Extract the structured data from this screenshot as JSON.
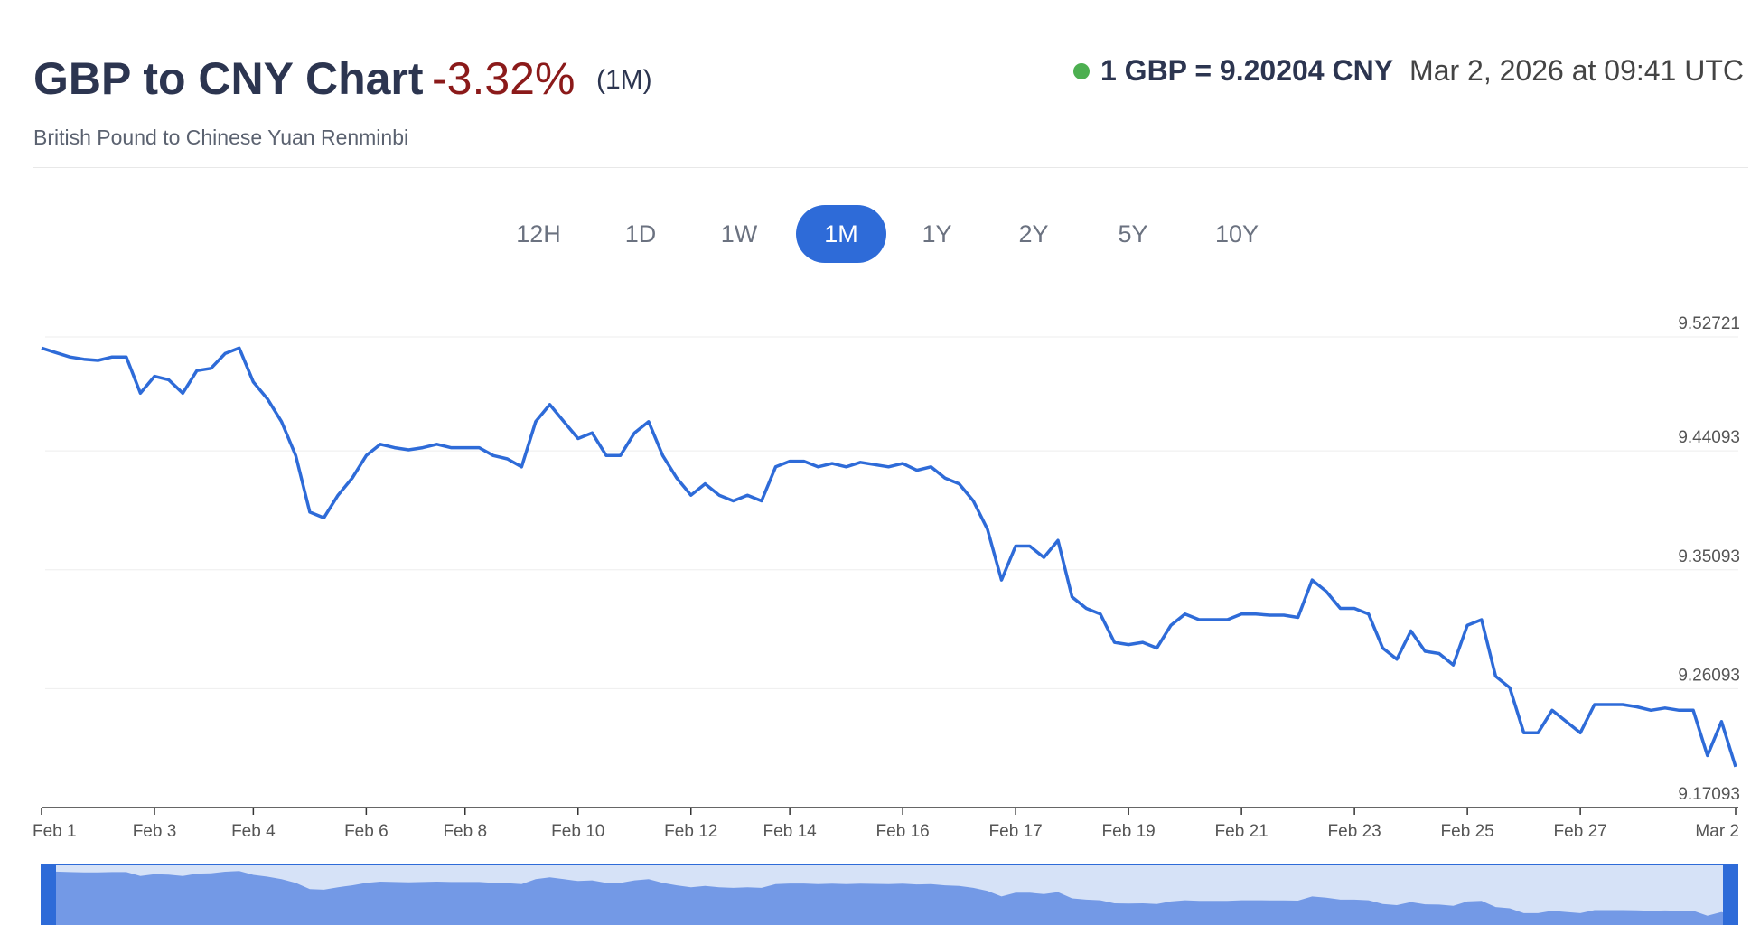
{
  "header": {
    "title": "GBP to CNY Chart",
    "change": "-3.32%",
    "period": "(1M)",
    "subtitle": "British Pound to Chinese Yuan Renminbi",
    "rate": "1 GBP = 9.20204 CNY",
    "timestamp": "Mar 2, 2026 at 09:41 UTC"
  },
  "ranges": {
    "options": [
      "12H",
      "1D",
      "1W",
      "1M",
      "1Y",
      "2Y",
      "5Y",
      "10Y"
    ],
    "selected_index": 3
  },
  "chart_data": {
    "type": "line",
    "color": "#2e6bd8",
    "categories": [
      "Feb 1",
      null,
      null,
      null,
      null,
      null,
      null,
      null,
      "Feb 3",
      null,
      null,
      null,
      null,
      null,
      null,
      "Feb 4",
      null,
      null,
      null,
      null,
      null,
      null,
      null,
      "Feb 6",
      null,
      null,
      null,
      null,
      null,
      null,
      "Feb 8",
      null,
      null,
      null,
      null,
      null,
      null,
      null,
      "Feb 10",
      null,
      null,
      null,
      null,
      null,
      null,
      null,
      "Feb 12",
      null,
      null,
      null,
      null,
      null,
      null,
      "Feb 14",
      null,
      null,
      null,
      null,
      null,
      null,
      null,
      "Feb 16",
      null,
      null,
      null,
      null,
      null,
      null,
      null,
      "Feb 17",
      null,
      null,
      null,
      null,
      null,
      null,
      null,
      "Feb 19",
      null,
      null,
      null,
      null,
      null,
      null,
      null,
      "Feb 21",
      null,
      null,
      null,
      null,
      null,
      null,
      null,
      "Feb 23",
      null,
      null,
      null,
      null,
      null,
      null,
      null,
      "Feb 25",
      null,
      null,
      null,
      null,
      null,
      null,
      null,
      "Feb 27",
      null,
      null,
      null,
      null,
      null,
      null,
      null,
      null,
      null,
      null,
      "Mar 2"
    ],
    "values": [
      9.5188,
      9.5154,
      9.512,
      9.5103,
      9.5094,
      9.512,
      9.512,
      9.4846,
      9.4974,
      9.4948,
      9.4846,
      9.5017,
      9.5034,
      9.5146,
      9.5188,
      9.4931,
      9.4803,
      9.4631,
      9.4374,
      9.3946,
      9.3903,
      9.4074,
      9.4203,
      9.4374,
      9.446,
      9.4434,
      9.4417,
      9.4434,
      9.446,
      9.4434,
      9.4434,
      9.4434,
      9.4374,
      9.4349,
      9.4289,
      9.4631,
      9.476,
      9.4631,
      9.4503,
      9.4546,
      9.4374,
      9.4374,
      9.4546,
      9.4631,
      9.4374,
      9.4203,
      9.4074,
      9.416,
      9.4074,
      9.4031,
      9.4074,
      9.4031,
      9.4289,
      9.4331,
      9.4331,
      9.4289,
      9.4314,
      9.4289,
      9.4323,
      9.4306,
      9.4289,
      9.4314,
      9.4263,
      9.4289,
      9.4203,
      9.416,
      9.4031,
      9.3817,
      9.3432,
      9.3689,
      9.3689,
      9.3603,
      9.3732,
      9.3303,
      9.3217,
      9.3174,
      9.296,
      9.2943,
      9.296,
      9.2917,
      9.3089,
      9.3174,
      9.3132,
      9.3132,
      9.3132,
      9.3174,
      9.3174,
      9.3166,
      9.3166,
      9.3149,
      9.3432,
      9.3346,
      9.3217,
      9.3217,
      9.3174,
      9.2917,
      9.2832,
      9.3046,
      9.2892,
      9.2875,
      9.2789,
      9.3089,
      9.3132,
      9.2703,
      9.2617,
      9.2275,
      9.2275,
      9.2446,
      9.236,
      9.2275,
      9.2489,
      9.2489,
      9.2489,
      9.2472,
      9.2446,
      9.2463,
      9.2446,
      9.2446,
      9.2103,
      9.236,
      9.2018
    ],
    "ylim": [
      9.17093,
      9.52721
    ],
    "yticks": [
      9.17093,
      9.26093,
      9.35093,
      9.44093,
      9.52721
    ],
    "grid": true
  }
}
